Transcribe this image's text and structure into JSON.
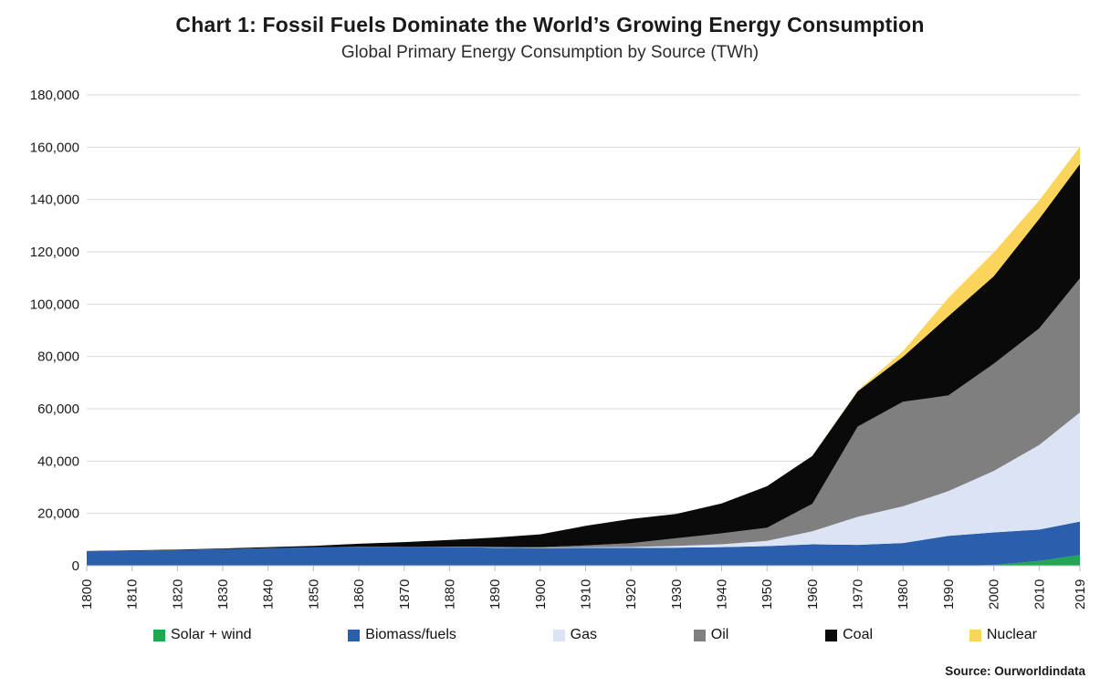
{
  "chart_data": {
    "type": "area",
    "stacked": true,
    "title": "Chart 1: Fossil Fuels Dominate the World’s Growing Energy Consumption",
    "subtitle": "Global Primary Energy Consumption by Source (TWh)",
    "source": "Source: Ourworldindata",
    "unit": "TWh",
    "grid": true,
    "gridline_color": "#d9d9d9",
    "axis_line_color": "#c9c9c9",
    "legend_position": "bottom",
    "years": [
      1800,
      1810,
      1820,
      1830,
      1840,
      1850,
      1860,
      1870,
      1880,
      1890,
      1900,
      1910,
      1920,
      1930,
      1940,
      1950,
      1960,
      1970,
      1980,
      1990,
      2000,
      2010,
      2019
    ],
    "series": [
      {
        "name": "Solar + wind",
        "color": "#1fa84f",
        "values": [
          0,
          0,
          0,
          0,
          0,
          0,
          0,
          0,
          0,
          0,
          0,
          0,
          0,
          0,
          0,
          0,
          0,
          0,
          0,
          0,
          250,
          1800,
          4100
        ]
      },
      {
        "name": "Biomass/fuels",
        "color": "#2a5fac",
        "values": [
          5500,
          5750,
          6000,
          6300,
          6700,
          7000,
          7300,
          7200,
          7100,
          6900,
          6700,
          6800,
          6800,
          6900,
          7100,
          7500,
          8200,
          8000,
          8700,
          11400,
          12500,
          12000,
          12800
        ]
      },
      {
        "name": "Gas",
        "color": "#dbe3f4",
        "values": [
          0,
          0,
          0,
          0,
          0,
          0,
          0,
          0,
          50,
          80,
          100,
          250,
          350,
          700,
          1100,
          2000,
          5000,
          10700,
          14000,
          17100,
          23500,
          32300,
          41700
        ]
      },
      {
        "name": "Oil",
        "color": "#7f7f7f",
        "values": [
          0,
          0,
          0,
          0,
          0,
          0,
          20,
          50,
          100,
          200,
          300,
          700,
          1500,
          2900,
          4200,
          5000,
          10500,
          34500,
          40000,
          36600,
          41000,
          44600,
          51300
        ]
      },
      {
        "name": "Coal",
        "color": "#0a0a0a",
        "values": [
          100,
          150,
          200,
          300,
          400,
          600,
          1100,
          1800,
          2600,
          3600,
          4900,
          7500,
          9200,
          9300,
          11400,
          15900,
          18300,
          13500,
          17200,
          30300,
          33400,
          41900,
          43700
        ]
      },
      {
        "name": "Nuclear",
        "color": "#fbd55b",
        "values": [
          0,
          0,
          0,
          0,
          0,
          0,
          0,
          0,
          0,
          0,
          0,
          0,
          0,
          0,
          0,
          0,
          0,
          300,
          2100,
          7000,
          9100,
          7000,
          6600
        ]
      }
    ],
    "y_axis": {
      "min": 0,
      "max": 180000,
      "tick_step": 20000,
      "tick_values": [
        0,
        20000,
        40000,
        60000,
        80000,
        100000,
        120000,
        140000,
        160000,
        180000
      ],
      "tick_labels": [
        "0",
        "20,000",
        "40,000",
        "60,000",
        "80,000",
        "100,000",
        "120,000",
        "140,000",
        "160,000",
        "180,000"
      ]
    },
    "x_axis": {
      "tick_years": [
        1800,
        1810,
        1820,
        1830,
        1840,
        1850,
        1860,
        1870,
        1880,
        1890,
        1900,
        1910,
        1920,
        1930,
        1940,
        1950,
        1960,
        1970,
        1980,
        1990,
        2000,
        2010,
        2019
      ],
      "range": [
        1800,
        2019
      ]
    }
  }
}
